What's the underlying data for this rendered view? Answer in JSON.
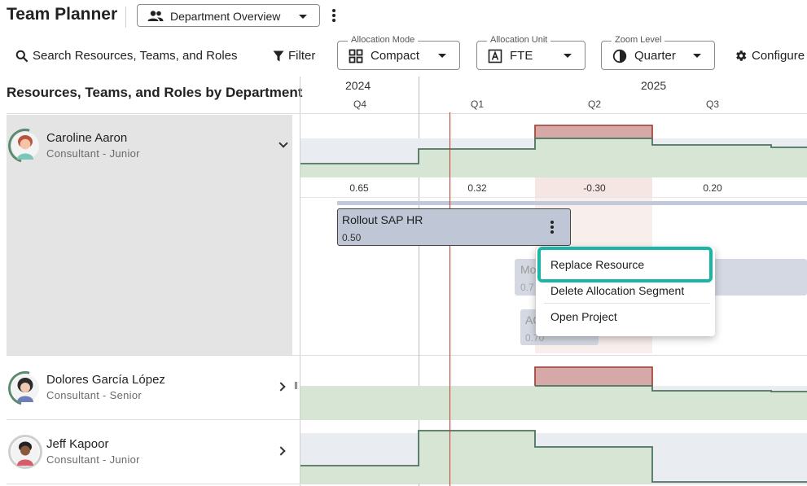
{
  "app": {
    "title": "Team Planner",
    "view_select": "Department Overview"
  },
  "toolbar": {
    "search_label": "Search Resources, Teams, and Roles",
    "filter_label": "Filter",
    "allocation_mode": {
      "label": "Allocation Mode",
      "value": "Compact"
    },
    "allocation_unit": {
      "label": "Allocation Unit",
      "value": "FTE"
    },
    "zoom_level": {
      "label": "Zoom Level",
      "value": "Quarter"
    },
    "configure_label": "Configure"
  },
  "panel": {
    "heading": "Resources, Teams, and Roles by Department"
  },
  "timeline": {
    "years": [
      "2024",
      "2025"
    ],
    "quarters": [
      "Q4",
      "Q1",
      "Q2",
      "Q3"
    ],
    "capacity_values": [
      "0.65",
      "0.32",
      "-0.30",
      "0.20"
    ]
  },
  "resources": [
    {
      "name": "Caroline Aaron",
      "role": "Consultant - Junior",
      "expanded": true
    },
    {
      "name": "Dolores García López",
      "role": "Consultant - Senior",
      "expanded": false
    },
    {
      "name": "Jeff Kapoor",
      "role": "Consultant - Junior",
      "expanded": false
    }
  ],
  "segments": {
    "main": {
      "title": "Rollout SAP HR",
      "value": "0.50"
    },
    "faded1": {
      "title": "Mo",
      "value": "0.7"
    },
    "faded2": {
      "title": "AC",
      "value": "0.70"
    }
  },
  "context_menu": {
    "items": [
      "Replace Resource",
      "Delete Allocation Segment",
      "Open Project"
    ]
  },
  "colors": {
    "accent": "#19b5a7",
    "capacity_fill": "#d7e5d4",
    "over_allocation": "#d6a8a8",
    "today_line": "#c0392b"
  }
}
